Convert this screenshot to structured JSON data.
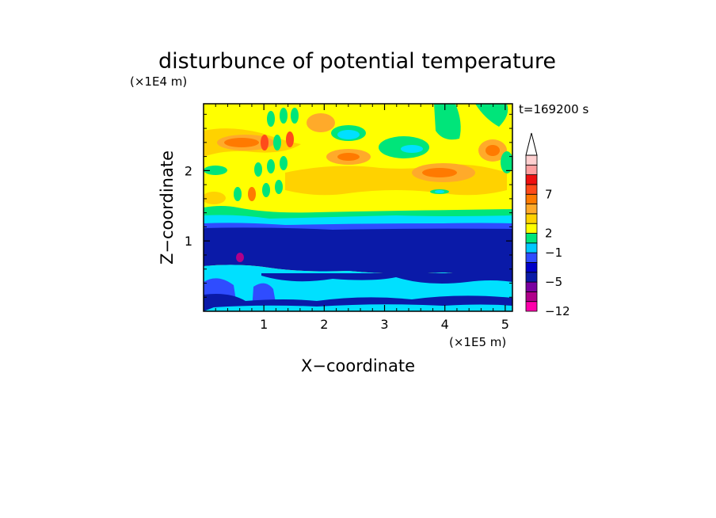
{
  "chart_data": {
    "type": "heatmap",
    "title": "disturbunce of potential temperature",
    "xlabel": "X−coordinate",
    "ylabel": "Z−coordinate",
    "x_unit": "(×1E5 m)",
    "y_unit": "(×1E4 m)",
    "time_label": "t=169200 s",
    "xlim": [
      0,
      5.12
    ],
    "ylim": [
      0,
      2.95
    ],
    "x_ticks": [
      1,
      2,
      3,
      4,
      5
    ],
    "y_ticks": [
      1,
      2
    ],
    "x_tick_labels": [
      "1",
      "2",
      "3",
      "4",
      "5"
    ],
    "y_tick_labels": [
      "1",
      "2"
    ],
    "colorbar": {
      "labels": [
        {
          "value": -12,
          "text": "−12"
        },
        {
          "value": -5,
          "text": "−5"
        },
        {
          "value": -1,
          "text": "−1"
        },
        {
          "value": 2,
          "text": "2"
        },
        {
          "value": 7,
          "text": "7"
        }
      ],
      "colors": [
        "#ff00aa",
        "#b0008a",
        "#7a00a0",
        "#0a1aa8",
        "#0000c8",
        "#2f4cff",
        "#00c8ff",
        "#00e57a",
        "#ffff00",
        "#ffd200",
        "#ffaa2a",
        "#ff7a00",
        "#ff4a1a",
        "#ee1010",
        "#ff9f9f",
        "#ffd0d0"
      ]
    },
    "layers": [
      {
        "name": "low-blue",
        "y_range": [
          0,
          0.28
        ],
        "color": "#0a1aa8"
      },
      {
        "name": "low-cyan",
        "y_range": [
          0.05,
          0.6
        ],
        "color": "#00e0ff"
      },
      {
        "name": "cold-band",
        "y_range": [
          0.62,
          1.3
        ],
        "color": "#0a1aa8"
      },
      {
        "name": "mid-blue",
        "y_range": [
          1.22,
          1.32
        ],
        "color": "#2f4cff"
      },
      {
        "name": "cyan-band",
        "y_range": [
          1.3,
          1.4
        ],
        "color": "#00e0ff"
      },
      {
        "name": "green-band",
        "y_range": [
          1.38,
          1.47
        ],
        "color": "#00e57a"
      },
      {
        "name": "upper-yellow",
        "y_range": [
          1.45,
          2.95
        ],
        "color": "#ffff00"
      }
    ]
  }
}
